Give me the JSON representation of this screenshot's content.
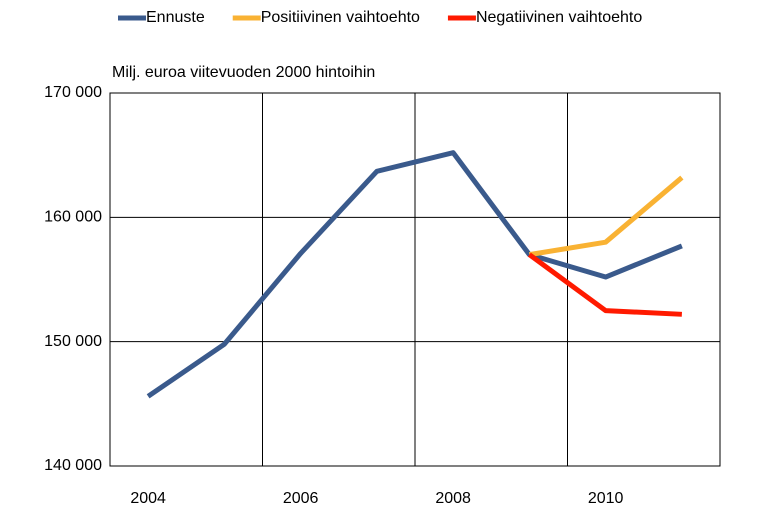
{
  "chart_data": {
    "type": "line",
    "subtitle": "Milj. euroa viitevuoden 2000 hintoihin",
    "categories": [
      "2004",
      null,
      "2006",
      null,
      "2008",
      null,
      "2010",
      null
    ],
    "series": [
      {
        "name": "Ennuste",
        "color": "#3a5a8c",
        "values": [
          145600,
          149800,
          157100,
          163700,
          165200,
          157000,
          155200,
          157700
        ]
      },
      {
        "name": "Positiivinen vaihtoehto",
        "color": "#f9b233",
        "values": [
          null,
          null,
          null,
          null,
          null,
          157000,
          158000,
          163200
        ]
      },
      {
        "name": "Negatiivinen vaihtoehto",
        "color": "#ff1a00",
        "values": [
          null,
          null,
          null,
          null,
          null,
          157000,
          152500,
          152200
        ]
      }
    ],
    "ylim": [
      140000,
      170000
    ],
    "yticks": [
      {
        "value": 140000,
        "label": "140 000"
      },
      {
        "value": 150000,
        "label": "150 000"
      },
      {
        "value": 160000,
        "label": "160 000"
      },
      {
        "value": 170000,
        "label": "170 000"
      }
    ],
    "grid": true,
    "legend": "top"
  }
}
